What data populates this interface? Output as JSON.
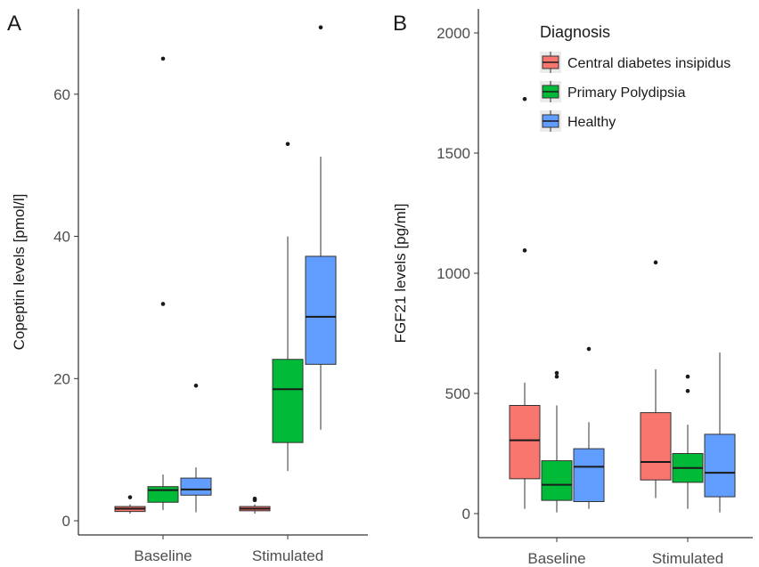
{
  "chart_data": [
    {
      "panel": "A",
      "type": "boxplot",
      "ylabel": "Copeptin levels [pmol/l]",
      "ylim": [
        -2,
        72
      ],
      "yticks": [
        0,
        20,
        40,
        60
      ],
      "categories": [
        "Baseline",
        "Stimulated"
      ],
      "series_order": [
        "Central diabetes insipidus",
        "Primary Polydipsia",
        "Healthy"
      ],
      "boxes": [
        {
          "category": "Baseline",
          "series": "Central diabetes insipidus",
          "whisker_low": 1.0,
          "q1": 1.3,
          "median": 1.7,
          "q3": 2.0,
          "whisker_high": 2.3,
          "outliers": [
            3.3
          ]
        },
        {
          "category": "Baseline",
          "series": "Primary Polydipsia",
          "whisker_low": 1.5,
          "q1": 2.6,
          "median": 4.3,
          "q3": 4.8,
          "whisker_high": 6.5,
          "outliers": [
            30.5,
            65.0
          ]
        },
        {
          "category": "Baseline",
          "series": "Healthy",
          "whisker_low": 1.2,
          "q1": 3.6,
          "median": 4.4,
          "q3": 6.0,
          "whisker_high": 7.5,
          "outliers": [
            19.0
          ]
        },
        {
          "category": "Stimulated",
          "series": "Central diabetes insipidus",
          "whisker_low": 1.0,
          "q1": 1.4,
          "median": 1.7,
          "q3": 2.0,
          "whisker_high": 2.3,
          "outliers": [
            2.9,
            3.1
          ]
        },
        {
          "category": "Stimulated",
          "series": "Primary Polydipsia",
          "whisker_low": 7.0,
          "q1": 11.0,
          "median": 18.5,
          "q3": 22.7,
          "whisker_high": 40.0,
          "outliers": [
            53.0
          ]
        },
        {
          "category": "Stimulated",
          "series": "Healthy",
          "whisker_low": 12.8,
          "q1": 22.0,
          "median": 28.7,
          "q3": 37.2,
          "whisker_high": 51.2,
          "outliers": [
            69.4
          ]
        }
      ]
    },
    {
      "panel": "B",
      "type": "boxplot",
      "ylabel": "FGF21 levels [pg/ml]",
      "ylim": [
        -100,
        2100
      ],
      "yticks": [
        0,
        500,
        1000,
        1500,
        2000
      ],
      "categories": [
        "Baseline",
        "Stimulated"
      ],
      "series_order": [
        "Central diabetes insipidus",
        "Primary Polydipsia",
        "Healthy"
      ],
      "boxes": [
        {
          "category": "Baseline",
          "series": "Central diabetes insipidus",
          "whisker_low": 20,
          "q1": 145,
          "median": 305,
          "q3": 450,
          "whisker_high": 545,
          "outliers": [
            1095,
            1725
          ]
        },
        {
          "category": "Baseline",
          "series": "Primary Polydipsia",
          "whisker_low": 5,
          "q1": 55,
          "median": 120,
          "q3": 220,
          "whisker_high": 450,
          "outliers": [
            570,
            585
          ]
        },
        {
          "category": "Baseline",
          "series": "Healthy",
          "whisker_low": 20,
          "q1": 50,
          "median": 195,
          "q3": 270,
          "whisker_high": 380,
          "outliers": [
            685
          ]
        },
        {
          "category": "Stimulated",
          "series": "Central diabetes insipidus",
          "whisker_low": 65,
          "q1": 140,
          "median": 215,
          "q3": 420,
          "whisker_high": 600,
          "outliers": [
            1045
          ]
        },
        {
          "category": "Stimulated",
          "series": "Primary Polydipsia",
          "whisker_low": 20,
          "q1": 130,
          "median": 190,
          "q3": 250,
          "whisker_high": 370,
          "outliers": [
            510,
            570
          ]
        },
        {
          "category": "Stimulated",
          "series": "Healthy",
          "whisker_low": 5,
          "q1": 70,
          "median": 170,
          "q3": 330,
          "whisker_high": 670,
          "outliers": []
        }
      ]
    }
  ],
  "legend": {
    "title": "Diagnosis",
    "placement": "top-right",
    "items": [
      {
        "label": "Central diabetes insipidus",
        "color": "#F8766D"
      },
      {
        "label": "Primary Polydipsia",
        "color": "#00BA38"
      },
      {
        "label": "Healthy",
        "color": "#619CFF"
      }
    ]
  }
}
